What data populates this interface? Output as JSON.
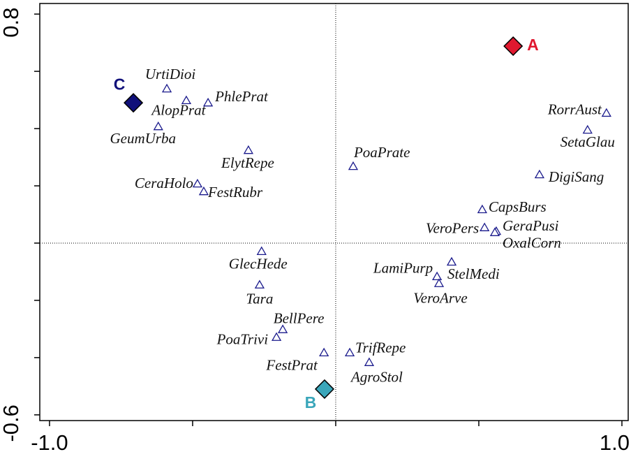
{
  "chart_data": {
    "type": "scatter",
    "xlim": [
      -1.034,
      1.022
    ],
    "ylim": [
      -0.62,
      0.837
    ],
    "xticks": [
      {
        "value": -1.0,
        "label": "-1.0"
      },
      {
        "value": -0.5,
        "label": null
      },
      {
        "value": 0,
        "label": null
      },
      {
        "value": 0.5,
        "label": null
      },
      {
        "value": 1.0,
        "label": "1.0"
      }
    ],
    "yticks": [
      -0.6,
      {
        "value": -0.4,
        "label": null
      },
      {
        "value": -0.2,
        "label": null
      },
      {
        "value": 0,
        "label": null
      },
      {
        "value": 0.2,
        "label": null
      },
      {
        "value": 0.4,
        "label": null
      },
      {
        "value": 0.6,
        "label": null
      },
      0.8
    ],
    "zero_lines": true,
    "species": {
      "marker": "triangle",
      "color": "#1a1a8c",
      "labels": [
        "UrtiDioi",
        "AlopPrat",
        "PhlePrat",
        "GeumUrba",
        "ElytRepe",
        "CeraHolo",
        "FestRubr",
        "PoaPrate",
        "RorrAust",
        "SetaGlau",
        "DigiSang",
        "CapsBurs",
        "VeroPers",
        "GeraPusi",
        "OxalCorn",
        "GlecHede",
        "LamiPurp",
        "StelMedi",
        "VeroArve",
        "Tara",
        "BellPere",
        "PoaTrivi",
        "FestPrat",
        "TrifRepe",
        "AgroStol"
      ],
      "x": [
        -0.59,
        -0.522,
        -0.446,
        -0.62,
        -0.305,
        -0.483,
        -0.461,
        0.061,
        0.946,
        0.88,
        0.712,
        0.512,
        0.52,
        0.561,
        0.556,
        -0.259,
        0.354,
        0.405,
        0.361,
        -0.266,
        -0.185,
        -0.207,
        -0.041,
        0.049,
        0.117
      ],
      "y": [
        0.539,
        0.498,
        0.49,
        0.407,
        0.324,
        0.207,
        0.18,
        0.268,
        0.454,
        0.395,
        0.239,
        0.117,
        0.054,
        0.041,
        0.037,
        -0.029,
        -0.117,
        -0.066,
        -0.141,
        -0.146,
        -0.302,
        -0.329,
        -0.383,
        -0.383,
        -0.417
      ]
    },
    "samples": {
      "marker": "diamond",
      "labels": [
        "A",
        "B",
        "C"
      ],
      "colors": [
        "#e0182f",
        "#3aa6ba",
        "#10107a"
      ],
      "x": [
        0.62,
        -0.039,
        -0.707
      ],
      "y": [
        0.688,
        -0.51,
        0.49
      ]
    }
  }
}
